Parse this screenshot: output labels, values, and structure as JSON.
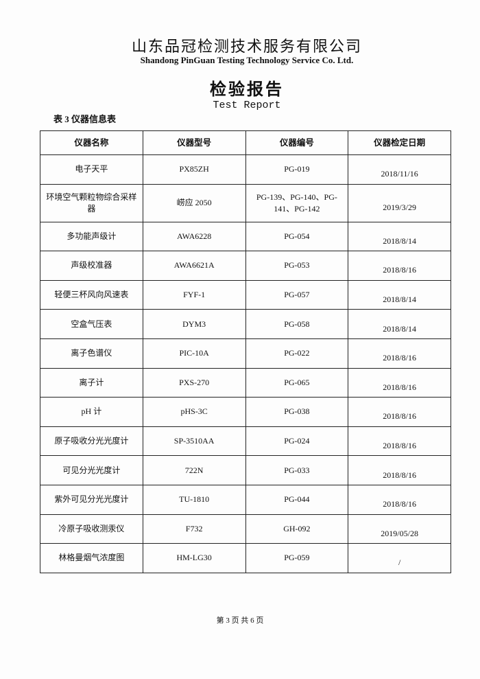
{
  "header": {
    "company_cn": "山东品冠检测技术服务有限公司",
    "company_en": "Shandong PinGuan Testing Technology Service Co. Ltd.",
    "report_title_cn": "检验报告",
    "report_title_en": "Test Report"
  },
  "table_caption": "表 3 仪器信息表",
  "table": {
    "headers": [
      "仪器名称",
      "仪器型号",
      "仪器编号",
      "仪器检定日期"
    ],
    "rows": [
      [
        "电子天平",
        "PX85ZH",
        "PG-019",
        "2018/11/16"
      ],
      [
        "环境空气颗粒物综合采样器",
        "崂应 2050",
        "PG-139、PG-140、PG-141、PG-142",
        "2019/3/29"
      ],
      [
        "多功能声级计",
        "AWA6228",
        "PG-054",
        "2018/8/14"
      ],
      [
        "声级校准器",
        "AWA6621A",
        "PG-053",
        "2018/8/16"
      ],
      [
        "轻便三杯风向风速表",
        "FYF-1",
        "PG-057",
        "2018/8/14"
      ],
      [
        "空盒气压表",
        "DYM3",
        "PG-058",
        "2018/8/14"
      ],
      [
        "离子色谱仪",
        "PIC-10A",
        "PG-022",
        "2018/8/16"
      ],
      [
        "离子计",
        "PXS-270",
        "PG-065",
        "2018/8/16"
      ],
      [
        "pH 计",
        "pHS-3C",
        "PG-038",
        "2018/8/16"
      ],
      [
        "原子吸收分光光度计",
        "SP-3510AA",
        "PG-024",
        "2018/8/16"
      ],
      [
        "可见分光光度计",
        "722N",
        "PG-033",
        "2018/8/16"
      ],
      [
        "紫外可见分光光度计",
        "TU-1810",
        "PG-044",
        "2018/8/16"
      ],
      [
        "冷原子吸收测汞仪",
        "F732",
        "GH-092",
        "2019/05/28"
      ],
      [
        "林格曼烟气浓度图",
        "HM-LG30",
        "PG-059",
        "/"
      ]
    ]
  },
  "footer": {
    "page": "第 3 页 共 6 页"
  }
}
